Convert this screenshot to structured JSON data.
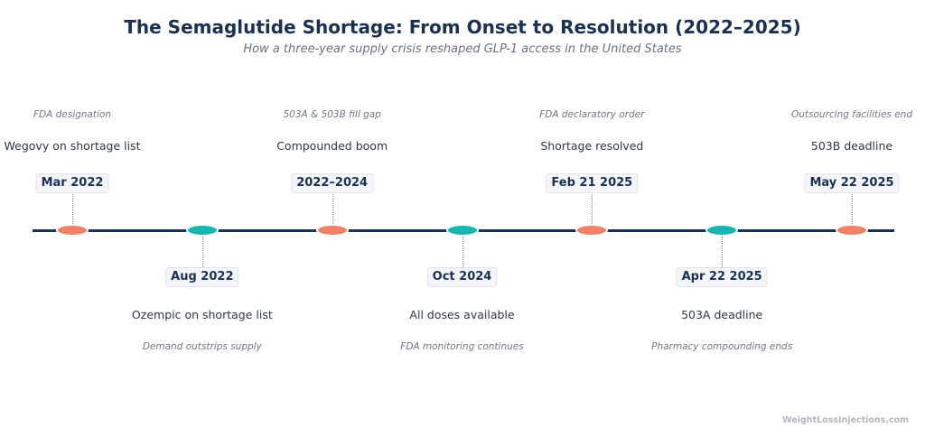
{
  "title": "The Semaglutide Shortage: From Onset to Resolution (2022–2025)",
  "subtitle": "How a three-year supply crisis reshaped GLP-1 access in the United States",
  "colors": {
    "axis": "#1b3152",
    "marker_primary": "#ee8166",
    "marker_secondary": "#17b5ad"
  },
  "events": [
    {
      "date": "Mar 2022",
      "label": "Wegovy on shortage list",
      "note": "FDA designation",
      "side": "above",
      "marker": "primary"
    },
    {
      "date": "Aug 2022",
      "label": "Ozempic on shortage list",
      "note": "Demand outstrips supply",
      "side": "below",
      "marker": "secondary"
    },
    {
      "date": "2022–2024",
      "label": "Compounded boom",
      "note": "503A & 503B fill gap",
      "side": "above",
      "marker": "primary"
    },
    {
      "date": "Oct 2024",
      "label": "All doses available",
      "note": "FDA monitoring continues",
      "side": "below",
      "marker": "secondary"
    },
    {
      "date": "Feb 21 2025",
      "label": "Shortage resolved",
      "note": "FDA declaratory order",
      "side": "above",
      "marker": "primary"
    },
    {
      "date": "Apr 22 2025",
      "label": "503A deadline",
      "note": "Pharmacy compounding ends",
      "side": "below",
      "marker": "secondary"
    },
    {
      "date": "May 22 2025",
      "label": "503B deadline",
      "note": "Outsourcing facilities end",
      "side": "above",
      "marker": "primary"
    }
  ],
  "watermark": "WeightLossInjections.com"
}
